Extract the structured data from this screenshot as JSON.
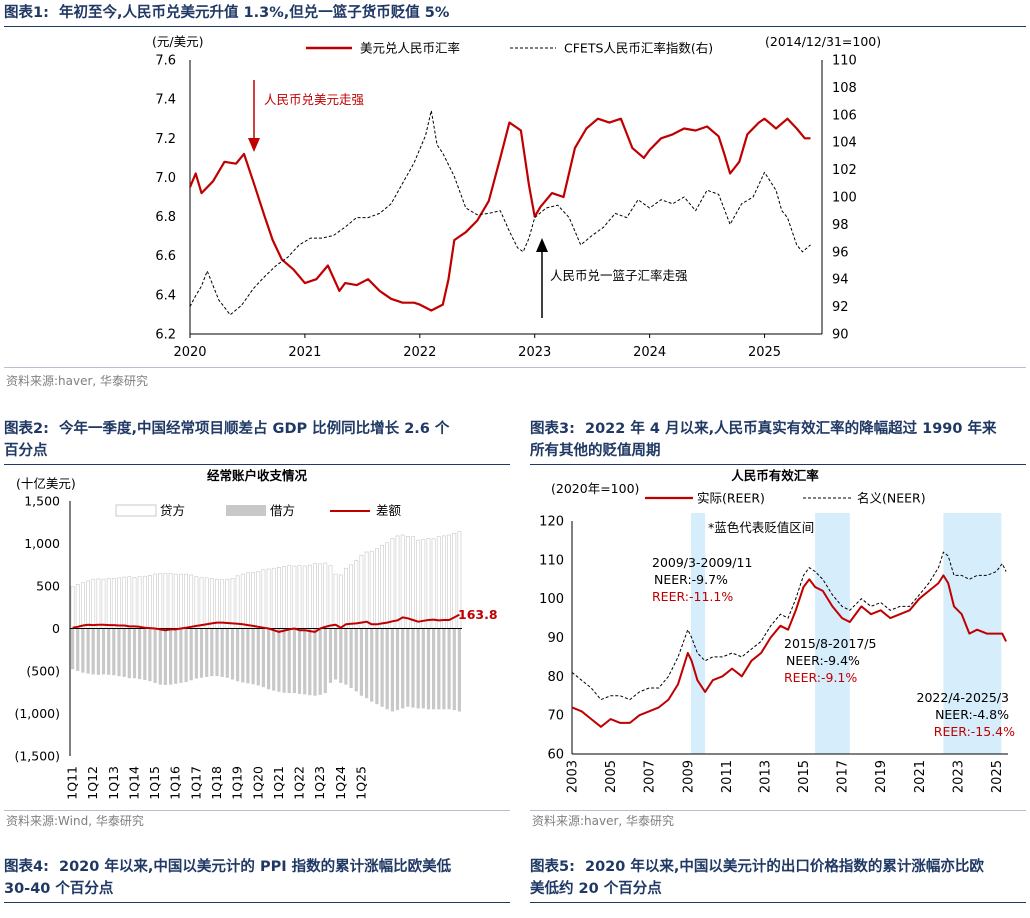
{
  "fig1": {
    "title": "图表1:  年初至今,人民币兑美元升值 1.3%,但兑一篮子货币贬值 5%",
    "source": "资料来源:haver, 华泰研究",
    "chart_data": {
      "type": "line",
      "ylabel_left": "(元/美元)",
      "ylabel_right": "(2014/12/31=100)",
      "ylim_left": [
        6.2,
        7.6
      ],
      "ylim_right": [
        90,
        110
      ],
      "yticks_left": [
        "6.2",
        "6.4",
        "6.6",
        "6.8",
        "7.0",
        "7.2",
        "7.4",
        "7.6"
      ],
      "yticks_right": [
        "90",
        "92",
        "94",
        "96",
        "98",
        "100",
        "102",
        "104",
        "106",
        "108",
        "110"
      ],
      "xlim": [
        2020,
        2025.5
      ],
      "xticks": [
        "2020",
        "2021",
        "2022",
        "2023",
        "2024",
        "2025"
      ],
      "legend": [
        "美元兑人民币汇率",
        "CFETS人民币汇率指数(右)"
      ],
      "series": [
        {
          "name": "美元兑人民币汇率",
          "axis": "left",
          "color": "#c00000",
          "x": [
            2020.0,
            2020.05,
            2020.1,
            2020.2,
            2020.3,
            2020.4,
            2020.47,
            2020.55,
            2020.65,
            2020.72,
            2020.8,
            2020.9,
            2021.0,
            2021.1,
            2021.2,
            2021.3,
            2021.35,
            2021.45,
            2021.55,
            2021.65,
            2021.75,
            2021.85,
            2021.95,
            2022.0,
            2022.1,
            2022.2,
            2022.25,
            2022.3,
            2022.35,
            2022.4,
            2022.5,
            2022.6,
            2022.7,
            2022.78,
            2022.83,
            2022.88,
            2022.95,
            2023.0,
            2023.05,
            2023.15,
            2023.25,
            2023.35,
            2023.45,
            2023.55,
            2023.65,
            2023.75,
            2023.85,
            2023.95,
            2024.0,
            2024.1,
            2024.2,
            2024.3,
            2024.4,
            2024.5,
            2024.6,
            2024.65,
            2024.7,
            2024.78,
            2024.85,
            2024.95,
            2025.0,
            2025.1,
            2025.2,
            2025.28,
            2025.35,
            2025.4
          ],
          "y": [
            6.95,
            7.02,
            6.92,
            6.98,
            7.08,
            7.07,
            7.12,
            6.98,
            6.8,
            6.68,
            6.58,
            6.53,
            6.46,
            6.48,
            6.55,
            6.42,
            6.46,
            6.45,
            6.48,
            6.42,
            6.38,
            6.36,
            6.36,
            6.35,
            6.32,
            6.35,
            6.48,
            6.68,
            6.7,
            6.72,
            6.78,
            6.88,
            7.1,
            7.28,
            7.26,
            7.24,
            6.96,
            6.8,
            6.85,
            6.92,
            6.9,
            7.15,
            7.25,
            7.3,
            7.28,
            7.3,
            7.15,
            7.1,
            7.14,
            7.2,
            7.22,
            7.25,
            7.24,
            7.26,
            7.21,
            7.12,
            7.02,
            7.08,
            7.22,
            7.28,
            7.3,
            7.25,
            7.3,
            7.25,
            7.2,
            7.2
          ]
        },
        {
          "name": "CFETS人民币汇率指数(右)",
          "axis": "right",
          "color": "#000000",
          "dash": true,
          "x": [
            2020.0,
            2020.05,
            2020.1,
            2020.15,
            2020.25,
            2020.35,
            2020.45,
            2020.55,
            2020.65,
            2020.75,
            2020.85,
            2020.95,
            2021.05,
            2021.15,
            2021.25,
            2021.35,
            2021.45,
            2021.55,
            2021.65,
            2021.75,
            2021.85,
            2021.95,
            2022.05,
            2022.1,
            2022.15,
            2022.2,
            2022.3,
            2022.4,
            2022.5,
            2022.6,
            2022.7,
            2022.78,
            2022.85,
            2022.9,
            2022.95,
            2023.0,
            2023.1,
            2023.2,
            2023.3,
            2023.4,
            2023.5,
            2023.6,
            2023.7,
            2023.8,
            2023.9,
            2024.0,
            2024.1,
            2024.2,
            2024.3,
            2024.4,
            2024.5,
            2024.6,
            2024.7,
            2024.8,
            2024.9,
            2025.0,
            2025.1,
            2025.15,
            2025.2,
            2025.28,
            2025.33,
            2025.4
          ],
          "y": [
            92,
            92.8,
            93.5,
            94.6,
            92.5,
            91.4,
            92.1,
            93.3,
            94.2,
            95.0,
            95.6,
            96.5,
            97,
            97,
            97.2,
            97.8,
            98.5,
            98.5,
            98.8,
            99.5,
            101,
            102.5,
            104.5,
            106.3,
            103.8,
            103.2,
            101.5,
            99.2,
            98.7,
            98.8,
            99.0,
            97.5,
            96.3,
            96.0,
            97.0,
            98.5,
            99.2,
            99.4,
            98.5,
            96.5,
            97.2,
            97.8,
            98.8,
            98.5,
            99.8,
            99.2,
            99.8,
            99.5,
            100.0,
            99.0,
            100.5,
            100.2,
            98.0,
            99.5,
            100.0,
            101.8,
            100.5,
            99.0,
            98.5,
            96.5,
            96.0,
            96.5
          ]
        }
      ],
      "annotations": [
        "人民币兑美元走强",
        "人民币兑一篮子汇率走强"
      ]
    }
  },
  "fig2": {
    "title": "图表2:  今年一季度,中国经常项目顺差占 GDP 比例同比增长 2.6 个\n百分点",
    "source": "资料来源:Wind, 华泰研究",
    "chart_data": {
      "type": "bar",
      "title": "经常账户收支情况",
      "ylabel": "(十亿美元)",
      "ylim": [
        -1500,
        1500
      ],
      "yticks": [
        "1,500",
        "1,000",
        "500",
        "0",
        "(500)",
        "(1,000)",
        "(1,500)"
      ],
      "xtick_labels": [
        "1Q11",
        "1Q12",
        "1Q13",
        "1Q14",
        "1Q15",
        "1Q16",
        "1Q17",
        "1Q18",
        "1Q19",
        "1Q20",
        "1Q21",
        "1Q22",
        "1Q23",
        "1Q24",
        "1Q25"
      ],
      "legend": [
        "贷方",
        "借方",
        "差额"
      ],
      "last_value_label": "163.8",
      "series": [
        {
          "name": "贷方",
          "color": "#ffffff",
          "values": [
            490,
            520,
            540,
            560,
            575,
            585,
            580,
            590,
            590,
            595,
            605,
            610,
            600,
            610,
            615,
            625,
            640,
            650,
            645,
            650,
            640,
            640,
            640,
            630,
            610,
            600,
            595,
            590,
            580,
            575,
            580,
            590,
            620,
            640,
            655,
            660,
            670,
            690,
            700,
            710,
            720,
            730,
            740,
            735,
            740,
            735,
            745,
            765,
            760,
            770,
            740,
            640,
            630,
            710,
            750,
            800,
            860,
            900,
            910,
            940,
            980,
            1010,
            1060,
            1090,
            1100,
            1085,
            1080,
            1040,
            1050,
            1060,
            1055,
            1080,
            1090,
            1100,
            1120,
            1140
          ]
        },
        {
          "name": "借方",
          "color": "#c8c8c8",
          "values": [
            -480,
            -500,
            -520,
            -530,
            -540,
            -545,
            -540,
            -545,
            -550,
            -560,
            -570,
            -585,
            -585,
            -595,
            -605,
            -620,
            -640,
            -660,
            -665,
            -660,
            -650,
            -640,
            -630,
            -610,
            -590,
            -580,
            -570,
            -560,
            -560,
            -570,
            -580,
            -600,
            -620,
            -635,
            -645,
            -655,
            -670,
            -690,
            -715,
            -730,
            -745,
            -755,
            -760,
            -760,
            -770,
            -775,
            -785,
            -790,
            -780,
            -760,
            -640,
            -600,
            -640,
            -660,
            -700,
            -740,
            -790,
            -820,
            -860,
            -890,
            -920,
            -950,
            -975,
            -960,
            -940,
            -920,
            -930,
            -940,
            -940,
            -950,
            -950,
            -950,
            -950,
            -950,
            -960,
            -976
          ]
        },
        {
          "name": "差额",
          "color": "#c00000",
          "values": [
            10,
            20,
            35,
            45,
            40,
            45,
            45,
            40,
            40,
            35,
            35,
            25,
            25,
            20,
            10,
            5,
            0,
            -10,
            -20,
            -10,
            -10,
            0,
            10,
            20,
            30,
            40,
            50,
            60,
            70,
            70,
            65,
            60,
            55,
            50,
            40,
            30,
            20,
            10,
            0,
            -20,
            -40,
            -25,
            -10,
            0,
            -20,
            -20,
            -30,
            -40,
            0,
            20,
            35,
            45,
            10,
            50,
            55,
            60,
            70,
            80,
            50,
            50,
            60,
            70,
            85,
            95,
            130,
            120,
            100,
            80,
            90,
            100,
            105,
            95,
            100,
            100,
            130,
            164
          ]
        }
      ]
    }
  },
  "fig3": {
    "title": "图表3:  2022 年 4 月以来,人民币真实有效汇率的降幅超过 1990 年来\n所有其他的贬值周期",
    "source": "资料来源:haver, 华泰研究",
    "chart_data": {
      "type": "line",
      "title": "人民币有效汇率",
      "ylabel": "(2020年=100)",
      "ylim": [
        60,
        120
      ],
      "yticks": [
        "120",
        "110",
        "100",
        "90",
        "80",
        "70",
        "60"
      ],
      "xlim": [
        2003,
        2025.6
      ],
      "xticks": [
        "2003",
        "2005",
        "2007",
        "2009",
        "2011",
        "2013",
        "2015",
        "2017",
        "2019",
        "2021",
        "2023",
        "2025"
      ],
      "legend": [
        "实际(REER)",
        "名义(NEER)"
      ],
      "shade_note": "*蓝色代表贬值区间",
      "shaded_periods": [
        [
          2009.17,
          2009.9
        ],
        [
          2015.6,
          2017.4
        ],
        [
          2022.25,
          2025.25
        ]
      ],
      "annotation_blocks": [
        {
          "period": "2009/3-2009/11",
          "neer": "NEER:-9.7%",
          "reer": "REER:-11.1%"
        },
        {
          "period": "2015/8-2017/5",
          "neer": "NEER:-9.4%",
          "reer": "REER:-9.1%"
        },
        {
          "period": "2022/4-2025/3",
          "neer": "NEER:-4.8%",
          "reer": "REER:-15.4%"
        }
      ],
      "series": [
        {
          "name": "实际(REER)",
          "color": "#c00000",
          "x": [
            2003,
            2003.5,
            2004,
            2004.5,
            2005,
            2005.5,
            2006,
            2006.5,
            2007,
            2007.5,
            2008,
            2008.5,
            2009,
            2009.2,
            2009.5,
            2009.9,
            2010.3,
            2010.8,
            2011.3,
            2011.8,
            2012.3,
            2012.8,
            2013.3,
            2013.8,
            2014.2,
            2014.6,
            2015,
            2015.3,
            2015.6,
            2016,
            2016.5,
            2017,
            2017.4,
            2018,
            2018.5,
            2019,
            2019.5,
            2020,
            2020.5,
            2021,
            2021.5,
            2022,
            2022.25,
            2022.5,
            2022.8,
            2023.2,
            2023.6,
            2024,
            2024.5,
            2025,
            2025.3,
            2025.5
          ],
          "y": [
            72,
            71,
            69,
            67,
            69,
            68,
            68,
            70,
            71,
            72,
            74,
            78,
            86,
            84,
            79,
            76,
            79,
            80,
            82,
            80,
            84,
            86,
            90,
            93,
            92,
            97,
            103,
            105,
            103,
            102,
            98,
            95,
            94,
            98,
            96,
            97,
            95,
            96,
            97,
            100,
            102,
            104,
            106,
            104,
            98,
            96,
            91,
            92,
            91,
            91,
            91,
            89
          ]
        },
        {
          "name": "名义(NEER)",
          "color": "#000000",
          "dash": true,
          "x": [
            2003,
            2003.5,
            2004,
            2004.5,
            2005,
            2005.5,
            2006,
            2006.5,
            2007,
            2007.5,
            2008,
            2008.5,
            2009,
            2009.2,
            2009.5,
            2009.9,
            2010.3,
            2010.8,
            2011.3,
            2011.8,
            2012.3,
            2012.8,
            2013.3,
            2013.8,
            2014.2,
            2014.6,
            2015,
            2015.3,
            2015.6,
            2016,
            2016.5,
            2017,
            2017.4,
            2018,
            2018.5,
            2019,
            2019.5,
            2020,
            2020.5,
            2021,
            2021.5,
            2022,
            2022.25,
            2022.5,
            2022.8,
            2023.2,
            2023.6,
            2024,
            2024.5,
            2025,
            2025.3,
            2025.5
          ],
          "y": [
            81,
            79,
            77,
            74,
            75,
            75,
            74,
            76,
            77,
            77,
            80,
            85,
            92,
            90,
            86,
            84,
            85,
            85,
            86,
            85,
            87,
            89,
            93,
            96,
            95,
            100,
            106,
            108,
            107,
            105,
            101,
            98,
            97,
            100,
            98,
            99,
            97,
            98,
            98,
            101,
            104,
            108,
            112,
            111,
            106,
            106,
            105,
            106,
            106,
            107,
            109,
            107
          ]
        }
      ]
    }
  },
  "fig4": {
    "title": "图表4:  2020 年以来,中国以美元计的 PPI 指数的累计涨幅比欧美低\n30-40 个百分点"
  },
  "fig5": {
    "title": "图表5:  2020 年以来,中国以美元计的出口价格指数的累计涨幅亦比欧\n美低约 20 个百分点"
  }
}
